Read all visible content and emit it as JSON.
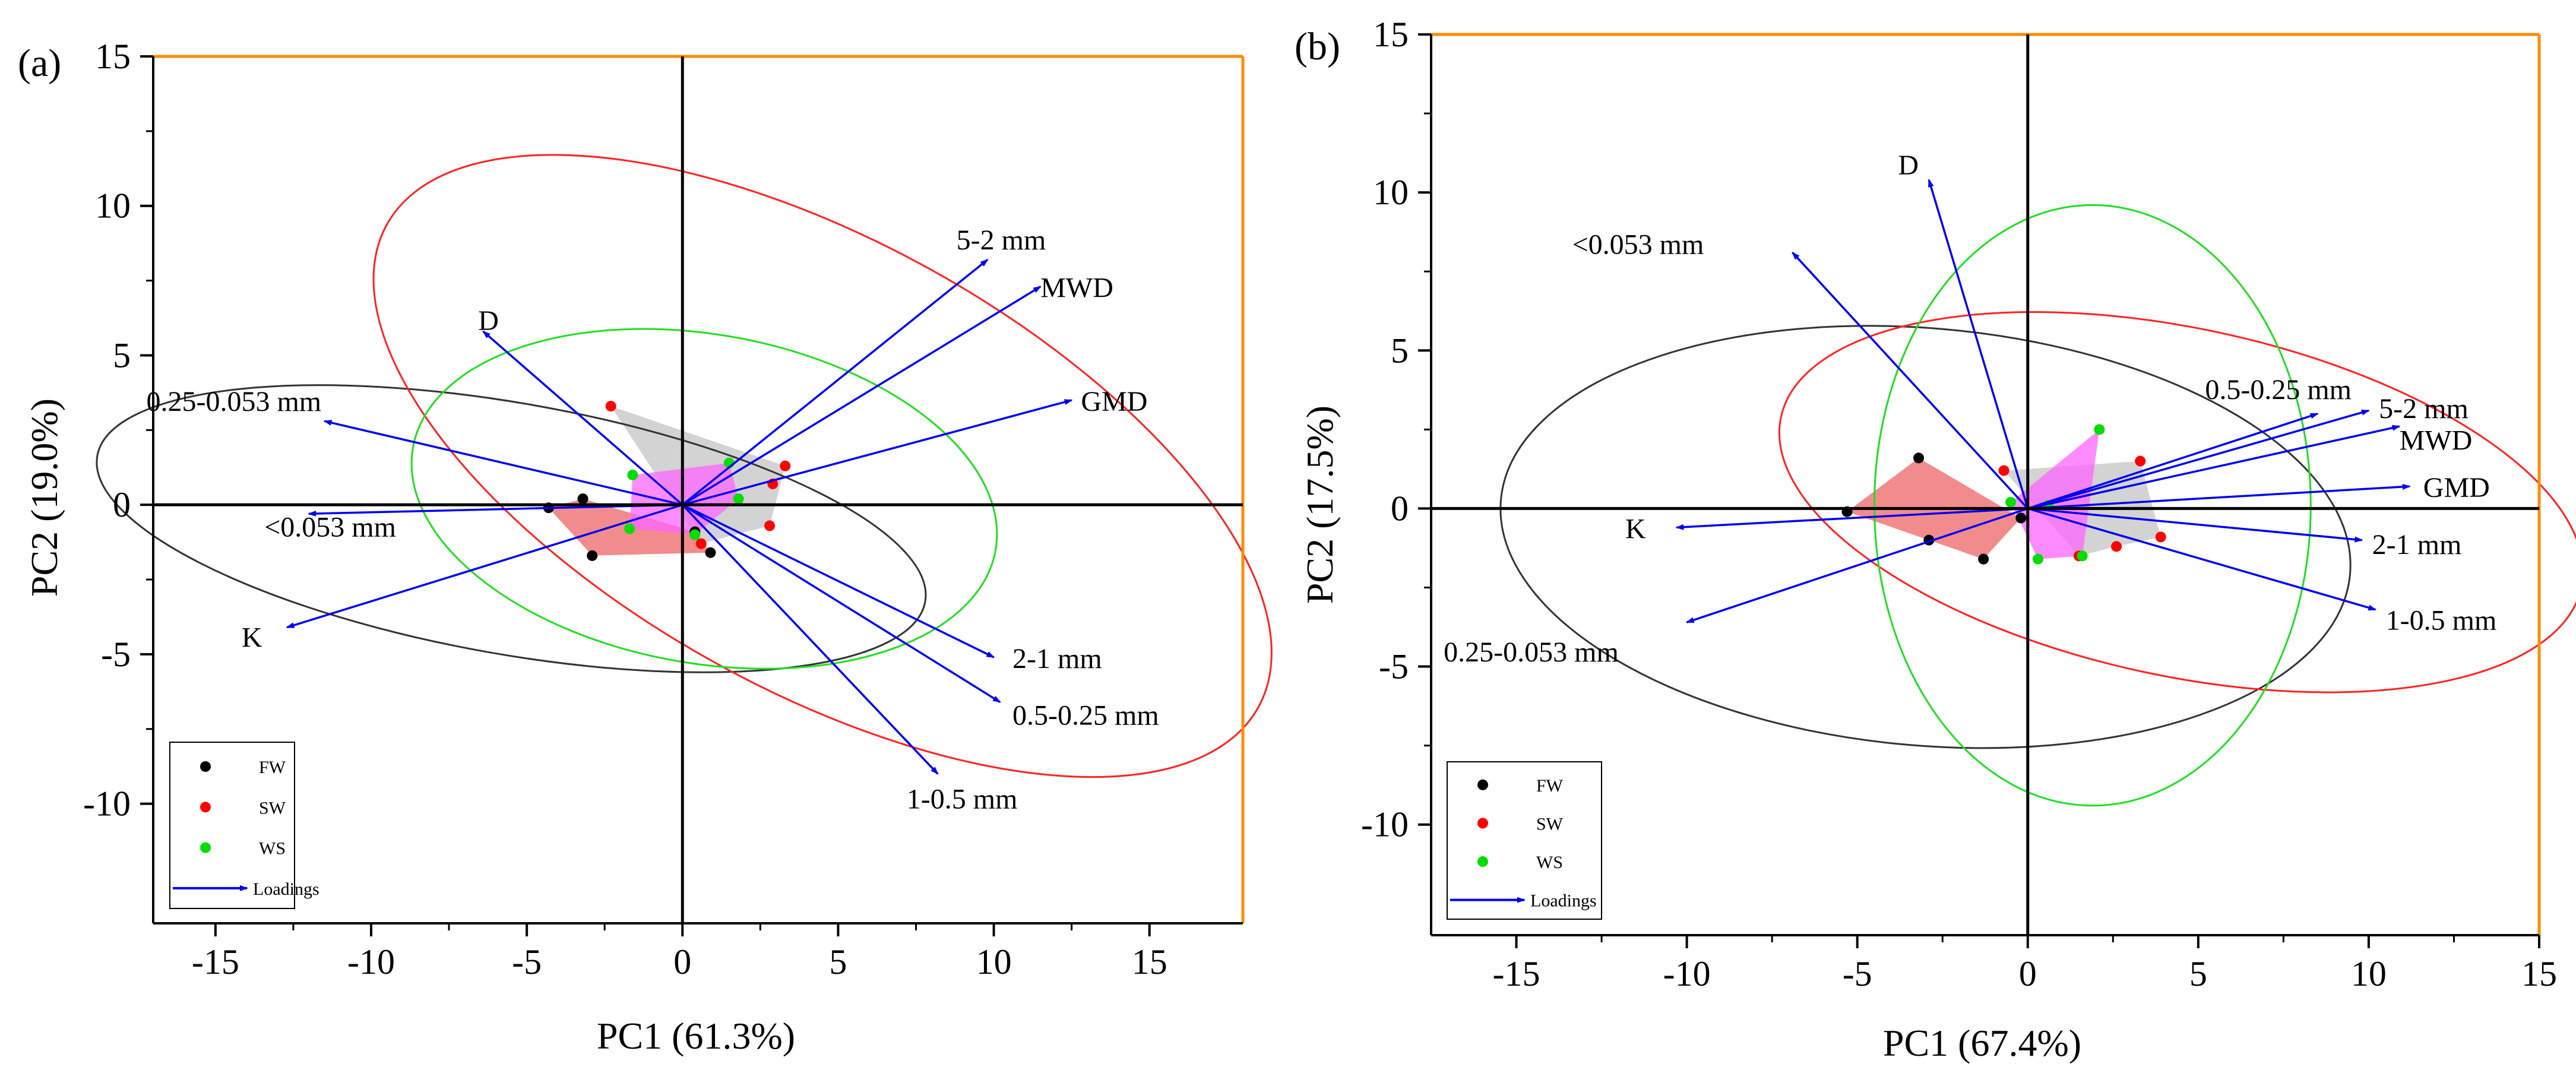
{
  "colors": {
    "FW": "#000000",
    "SW": "#ff0000",
    "WS": "#00dd00",
    "loadings": "#0000ee",
    "frame_top_right": "#ff8c00",
    "hull_FW": "#ee6666",
    "hull_SW": "#c8c8c8",
    "hull_WS": "#ff66ff"
  },
  "chart_data": [
    {
      "panel_label": "(a)",
      "type": "scatter",
      "subtype": "PCA biplot",
      "xlabel": "PC1 (61.3%)",
      "ylabel": "PC2 (19.0%)",
      "xlim": [
        -17,
        18
      ],
      "ylim": [
        -14,
        15
      ],
      "xticks": [
        -15,
        -10,
        -5,
        0,
        5,
        10,
        15
      ],
      "yticks": [
        -10,
        -5,
        0,
        5,
        10,
        15
      ],
      "grid": false,
      "legend_position": "bottom-left",
      "legend": [
        {
          "key": "FW",
          "label": "FW",
          "kind": "marker"
        },
        {
          "key": "SW",
          "label": "SW",
          "kind": "marker"
        },
        {
          "key": "WS",
          "label": "WS",
          "kind": "marker"
        },
        {
          "key": "loadings",
          "label": "Loadings",
          "kind": "arrow"
        }
      ],
      "series": [
        {
          "name": "FW",
          "points": [
            [
              -3.2,
              0.2
            ],
            [
              -2.9,
              -1.7
            ],
            [
              -4.3,
              -0.1
            ],
            [
              0.9,
              -1.6
            ],
            [
              0.4,
              -0.9
            ]
          ]
        },
        {
          "name": "SW",
          "points": [
            [
              -2.3,
              3.3
            ],
            [
              3.3,
              1.3
            ],
            [
              2.9,
              0.7
            ],
            [
              2.8,
              -0.7
            ],
            [
              0.6,
              -1.3
            ]
          ]
        },
        {
          "name": "WS",
          "points": [
            [
              -1.6,
              1.0
            ],
            [
              -1.7,
              -0.8
            ],
            [
              0.4,
              -1.0
            ],
            [
              1.8,
              0.2
            ],
            [
              1.5,
              1.4
            ]
          ]
        }
      ],
      "hulls": [
        {
          "group": "FW",
          "points": [
            [
              -4.3,
              -0.1
            ],
            [
              -3.2,
              0.2
            ],
            [
              0.4,
              -0.9
            ],
            [
              0.9,
              -1.6
            ],
            [
              -2.9,
              -1.7
            ]
          ]
        },
        {
          "group": "SW",
          "points": [
            [
              -2.3,
              3.3
            ],
            [
              3.3,
              1.3
            ],
            [
              2.8,
              -0.7
            ],
            [
              0.6,
              -1.3
            ]
          ]
        },
        {
          "group": "WS",
          "points": [
            [
              -1.6,
              1.0
            ],
            [
              1.5,
              1.4
            ],
            [
              1.8,
              0.2
            ],
            [
              0.4,
              -1.0
            ],
            [
              -1.7,
              -0.8
            ]
          ]
        }
      ],
      "ellipses": [
        {
          "group": "FW",
          "center": [
            -5.5,
            -0.8
          ],
          "rx": 13.5,
          "ry": 4.2,
          "angle": -10
        },
        {
          "group": "SW",
          "center": [
            4.5,
            1.3
          ],
          "rx": 16.0,
          "ry": 7.5,
          "angle": -29
        },
        {
          "group": "WS",
          "center": [
            0.7,
            0.2
          ],
          "rx": 9.5,
          "ry": 5.5,
          "angle": -10
        }
      ],
      "loadings": [
        {
          "label": "5-2 mm",
          "x": 9.8,
          "y": 8.2,
          "label_x": 8.8,
          "label_y": 8.9
        },
        {
          "label": "MWD",
          "x": 11.5,
          "y": 7.3,
          "label_x": 11.5,
          "label_y": 7.3
        },
        {
          "label": "GMD",
          "x": 12.5,
          "y": 3.5,
          "label_x": 12.8,
          "label_y": 3.5
        },
        {
          "label": "2-1 mm",
          "x": 10.0,
          "y": -5.1,
          "label_x": 10.6,
          "label_y": -5.1
        },
        {
          "label": "0.5-0.25 mm",
          "x": 10.2,
          "y": -6.6,
          "label_x": 10.6,
          "label_y": -7.0
        },
        {
          "label": "1-0.5 mm",
          "x": 8.2,
          "y": -9.0,
          "label_x": 7.2,
          "label_y": -9.8
        },
        {
          "label": "D",
          "x": -6.4,
          "y": 5.8,
          "label_x": -5.9,
          "label_y": 6.2
        },
        {
          "label": "0.25-0.053 mm",
          "x": -11.5,
          "y": 2.8,
          "label_x": -11.6,
          "label_y": 3.5
        },
        {
          "label": "<0.053 mm",
          "x": -12.0,
          "y": -0.3,
          "label_x": -9.2,
          "label_y": -0.7
        },
        {
          "label": "K",
          "x": -12.7,
          "y": -4.1,
          "label_x": -13.5,
          "label_y": -4.4
        }
      ]
    },
    {
      "panel_label": "(b)",
      "type": "scatter",
      "subtype": "PCA biplot",
      "xlabel": "PC1 (67.4%)",
      "ylabel": "PC2 (17.5%)",
      "xlim": [
        -17.5,
        15
      ],
      "ylim": [
        -13.5,
        15
      ],
      "xticks": [
        -15,
        -10,
        -5,
        0,
        5,
        10,
        15
      ],
      "yticks": [
        -10,
        -5,
        0,
        5,
        10,
        15
      ],
      "grid": false,
      "legend_position": "bottom-left",
      "legend": [
        {
          "key": "FW",
          "label": "FW",
          "kind": "marker"
        },
        {
          "key": "SW",
          "label": "SW",
          "kind": "marker"
        },
        {
          "key": "WS",
          "label": "WS",
          "kind": "marker"
        },
        {
          "key": "loadings",
          "label": "Loadings",
          "kind": "arrow"
        }
      ],
      "series": [
        {
          "name": "FW",
          "points": [
            [
              -3.2,
              1.6
            ],
            [
              -5.3,
              -0.1
            ],
            [
              -2.9,
              -1.0
            ],
            [
              -1.3,
              -1.6
            ],
            [
              -0.2,
              -0.3
            ]
          ]
        },
        {
          "name": "SW",
          "points": [
            [
              -0.7,
              1.2
            ],
            [
              3.3,
              1.5
            ],
            [
              3.9,
              -0.9
            ],
            [
              2.6,
              -1.2
            ],
            [
              1.5,
              -1.5
            ]
          ]
        },
        {
          "name": "WS",
          "points": [
            [
              -0.5,
              0.2
            ],
            [
              2.1,
              2.5
            ],
            [
              1.6,
              -1.5
            ],
            [
              0.3,
              -1.6
            ],
            [
              0.6,
              0.1
            ]
          ]
        }
      ],
      "hulls": [
        {
          "group": "FW",
          "points": [
            [
              -3.2,
              1.6
            ],
            [
              -0.2,
              -0.3
            ],
            [
              -1.3,
              -1.6
            ],
            [
              -2.9,
              -1.0
            ],
            [
              -5.3,
              -0.1
            ]
          ]
        },
        {
          "group": "SW",
          "points": [
            [
              -0.7,
              1.2
            ],
            [
              3.3,
              1.5
            ],
            [
              3.9,
              -0.9
            ],
            [
              2.6,
              -1.2
            ],
            [
              1.5,
              -1.5
            ]
          ]
        },
        {
          "group": "WS",
          "points": [
            [
              -0.5,
              0.2
            ],
            [
              2.1,
              2.5
            ],
            [
              1.6,
              -1.5
            ],
            [
              0.3,
              -1.6
            ]
          ]
        }
      ],
      "ellipses": [
        {
          "group": "FW",
          "center": [
            -3.0,
            -0.9
          ],
          "rx": 12.5,
          "ry": 6.6,
          "angle": -5
        },
        {
          "group": "SW",
          "center": [
            4.5,
            0.2
          ],
          "rx": 12.0,
          "ry": 5.5,
          "angle": -12
        },
        {
          "group": "WS",
          "center": [
            1.9,
            0.1
          ],
          "rx": 6.4,
          "ry": 9.5,
          "angle": 0
        }
      ],
      "loadings": [
        {
          "label": "D",
          "x": -2.9,
          "y": 10.4,
          "label_x": -3.2,
          "label_y": 10.9
        },
        {
          "label": "<0.053 mm",
          "x": -6.9,
          "y": 8.1,
          "label_x": -9.5,
          "label_y": 8.4
        },
        {
          "label": "0.5-0.25 mm",
          "x": 8.5,
          "y": 3.0,
          "label_x": 5.2,
          "label_y": 3.8
        },
        {
          "label": "5-2 mm",
          "x": 10.0,
          "y": 3.1,
          "label_x": 10.3,
          "label_y": 3.2
        },
        {
          "label": "MWD",
          "x": 10.9,
          "y": 2.6,
          "label_x": 10.9,
          "label_y": 2.2
        },
        {
          "label": "GMD",
          "x": 11.2,
          "y": 0.7,
          "label_x": 11.6,
          "label_y": 0.7
        },
        {
          "label": "2-1 mm",
          "x": 9.8,
          "y": -1.0,
          "label_x": 10.1,
          "label_y": -1.1
        },
        {
          "label": "1-0.5 mm",
          "x": 10.2,
          "y": -3.2,
          "label_x": 10.5,
          "label_y": -3.5
        },
        {
          "label": "K",
          "x": -10.3,
          "y": -0.6,
          "label_x": -11.2,
          "label_y": -0.6
        },
        {
          "label": "0.25-0.053 mm",
          "x": -10.0,
          "y": -3.6,
          "label_x": -12.0,
          "label_y": -4.5
        }
      ]
    }
  ]
}
